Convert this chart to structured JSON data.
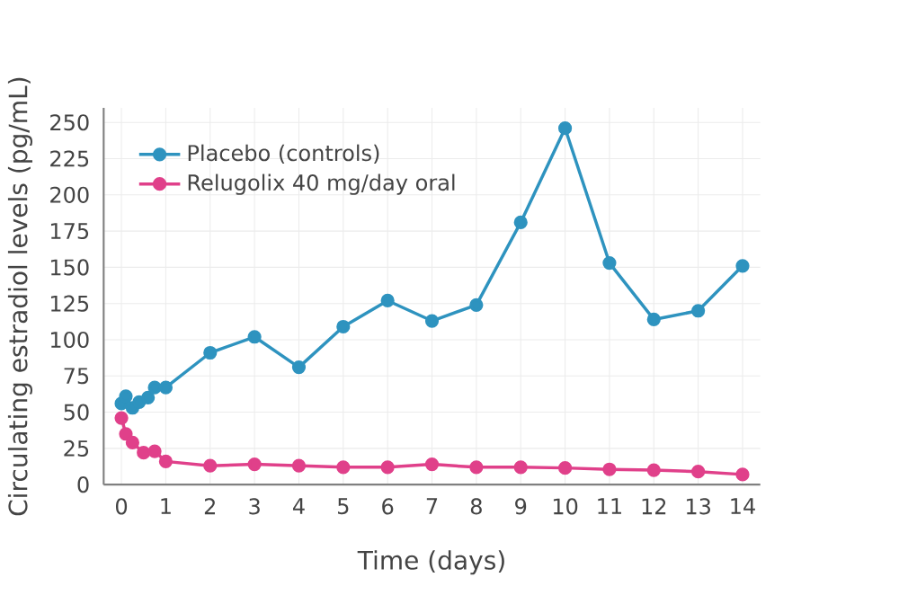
{
  "chart_data": {
    "type": "line",
    "xlabel": "Time (days)",
    "ylabel": "Circulating estradiol levels (pg/mL)",
    "xlim": [
      -0.4,
      14.4
    ],
    "ylim": [
      0,
      260
    ],
    "xticks": [
      0,
      1,
      2,
      3,
      4,
      5,
      6,
      7,
      8,
      9,
      10,
      11,
      12,
      13,
      14
    ],
    "yticks": [
      0,
      25,
      50,
      75,
      100,
      125,
      150,
      175,
      200,
      225,
      250
    ],
    "grid": true,
    "legend": "top left",
    "marker": "circle",
    "line_style": "solid",
    "series": [
      {
        "name": "Placebo (controls)",
        "color": "#2e93bf",
        "x": [
          0,
          0.1,
          0.25,
          0.4,
          0.6,
          0.75,
          1,
          2,
          3,
          4,
          5,
          6,
          7,
          8,
          9,
          10,
          11,
          12,
          13,
          14
        ],
        "values": [
          56,
          61,
          53,
          57,
          60,
          67,
          67,
          91,
          102,
          81,
          109,
          127,
          113,
          124,
          181,
          246,
          153,
          114,
          120,
          151
        ]
      },
      {
        "name": "Relugolix 40 mg/day oral",
        "color": "#e0408a",
        "x": [
          0,
          0.1,
          0.25,
          0.5,
          0.75,
          1,
          2,
          3,
          4,
          5,
          6,
          7,
          8,
          9,
          10,
          11,
          12,
          13,
          14
        ],
        "values": [
          46,
          35,
          29,
          22,
          23,
          16,
          13,
          14,
          13,
          12,
          12,
          14,
          12,
          12,
          11.5,
          10.5,
          10,
          9,
          7
        ]
      }
    ]
  }
}
